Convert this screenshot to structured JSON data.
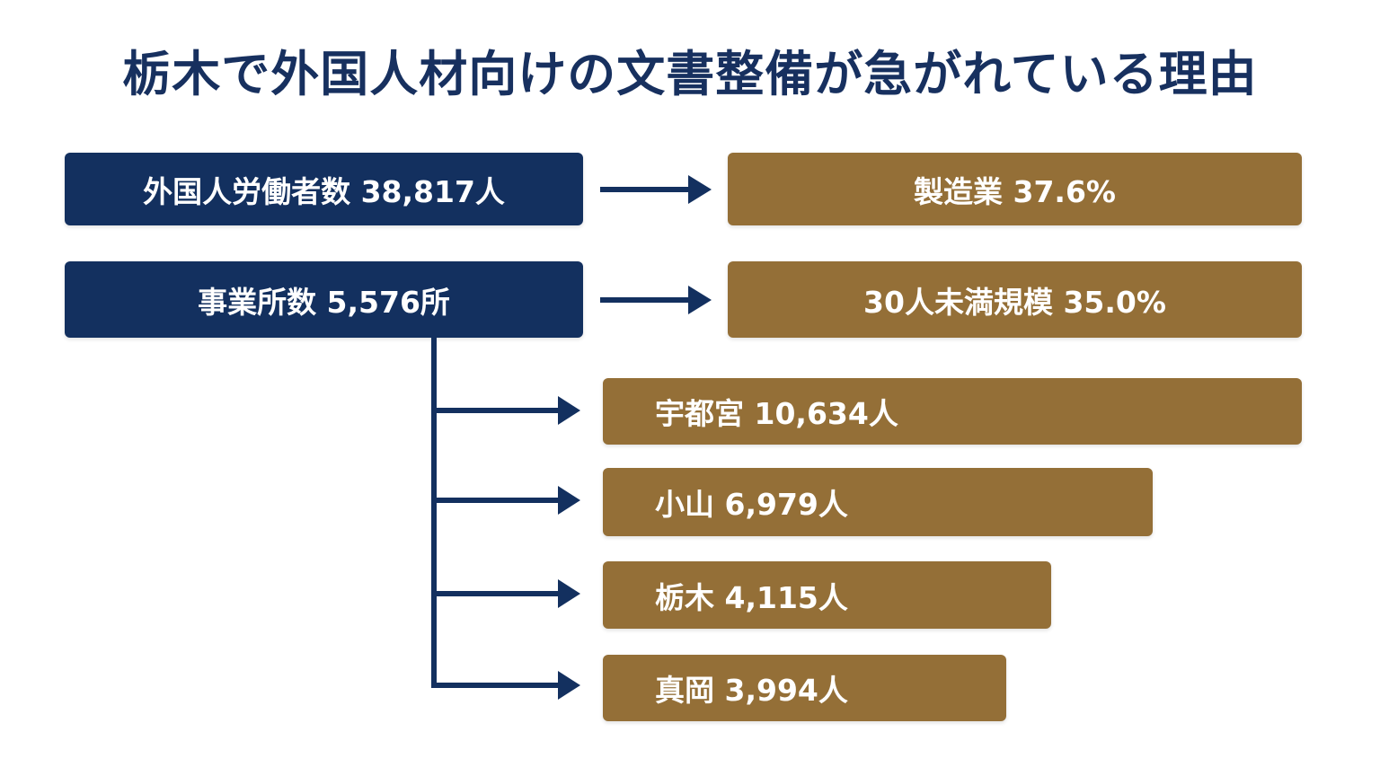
{
  "title": "栃木で外国人材向けの文書整備が急がれている理由",
  "left_boxes": {
    "workers": "外国人労働者数 38,817人",
    "offices": "事業所数 5,576所"
  },
  "right_boxes": {
    "manufacturing": "製造業 37.6%",
    "small_scale": "30人未満規模 35.0%"
  },
  "city_boxes": [
    {
      "label": "宇都宮 10,634人",
      "value": 10634
    },
    {
      "label": "小山 6,979人",
      "value": 6979
    },
    {
      "label": "栃木 4,115人",
      "value": 4115
    },
    {
      "label": "真岡 3,994人",
      "value": 3994
    }
  ],
  "colors": {
    "navy": "#13305f",
    "gold": "#946f37",
    "title": "#17305f"
  }
}
